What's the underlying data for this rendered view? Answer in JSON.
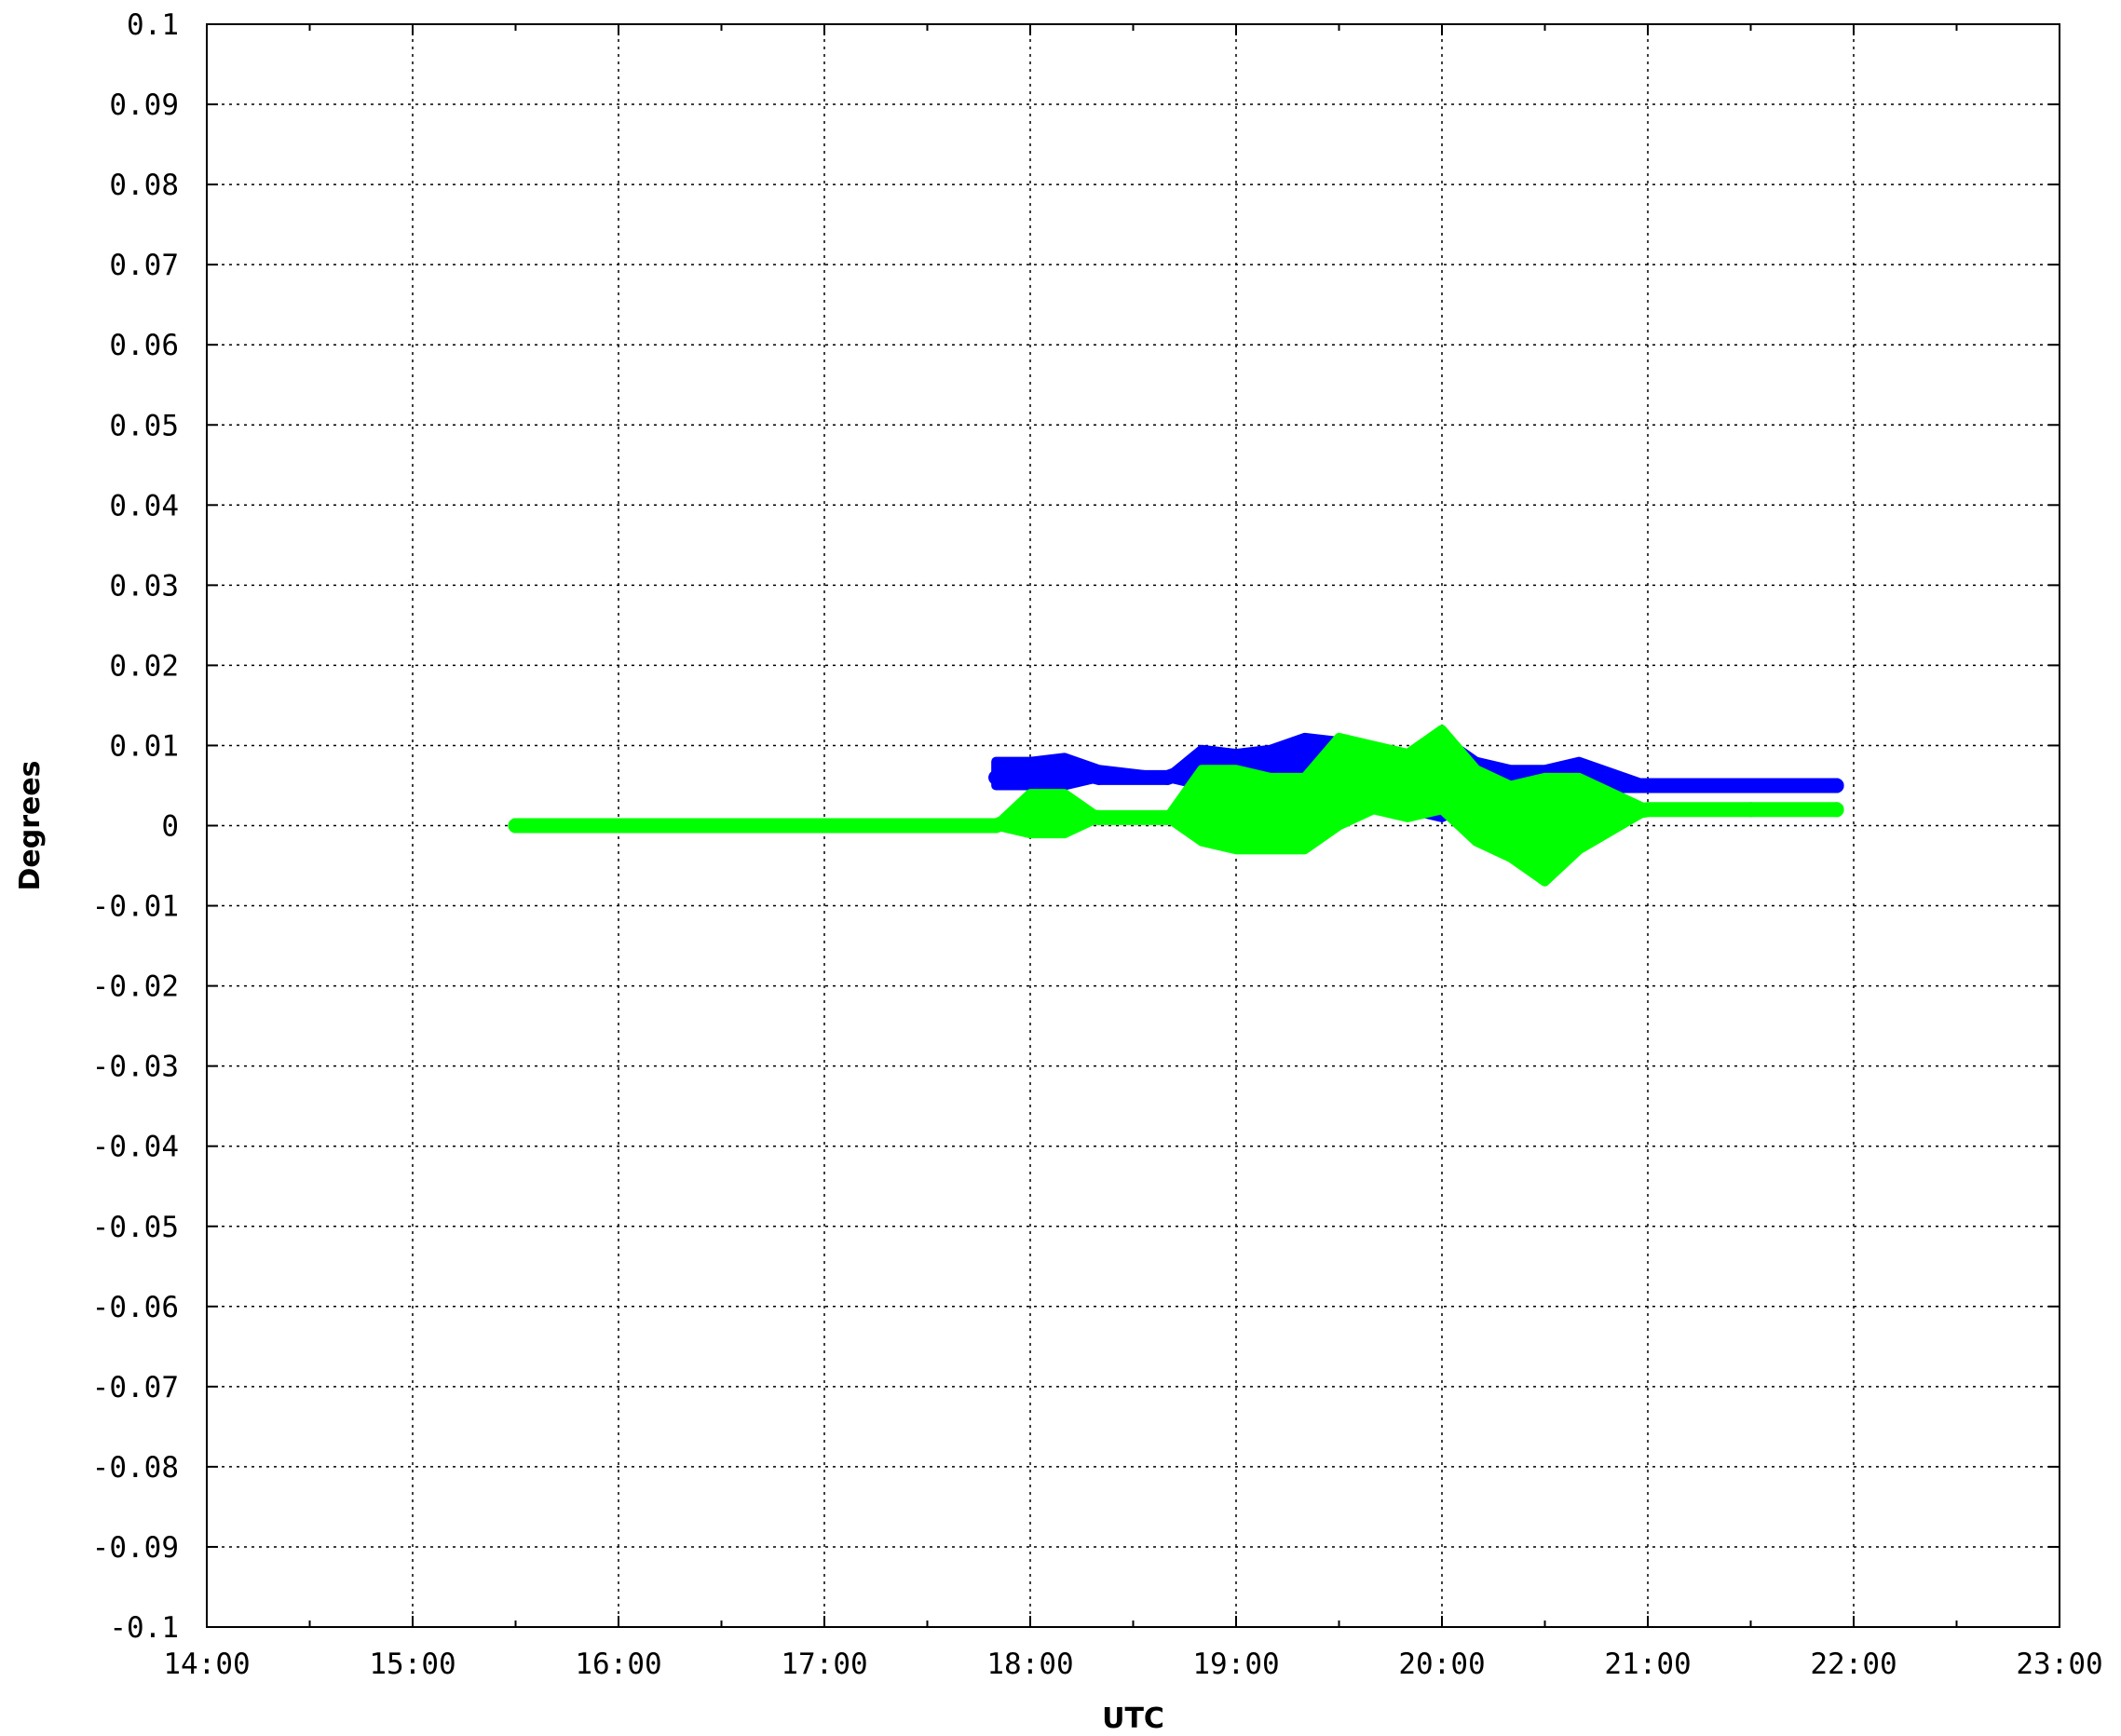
{
  "chart_data": {
    "type": "line",
    "title": "",
    "xlabel": "UTC",
    "ylabel": "Degrees",
    "x_ticks": [
      "14:00",
      "15:00",
      "16:00",
      "17:00",
      "18:00",
      "19:00",
      "20:00",
      "21:00",
      "22:00",
      "23:00"
    ],
    "xlim": [
      "14:00",
      "23:00"
    ],
    "y_ticks": [
      "0.1",
      "0.09",
      "0.08",
      "0.07",
      "0.06",
      "0.05",
      "0.04",
      "0.03",
      "0.02",
      "0.01",
      "0",
      "-0.01",
      "-0.02",
      "-0.03",
      "-0.04",
      "-0.05",
      "-0.06",
      "-0.07",
      "-0.08",
      "-0.09",
      "-0.1"
    ],
    "ylim": [
      -0.1,
      0.1
    ],
    "grid": true,
    "series": [
      {
        "color": "#0000ff",
        "x": [
          "17:50",
          "18:00",
          "18:10",
          "18:20",
          "18:40",
          "18:50",
          "19:00",
          "19:10",
          "19:20",
          "19:30",
          "19:40",
          "19:50",
          "20:00",
          "20:10",
          "20:20",
          "20:30",
          "20:40",
          "21:00",
          "21:30",
          "21:55"
        ],
        "values": [
          0.006,
          0.0065,
          0.007,
          0.006,
          0.006,
          0.0075,
          0.007,
          0.0065,
          0.008,
          0.0075,
          0.006,
          0.0055,
          0.006,
          0.0055,
          0.006,
          0.0055,
          0.005,
          0.005,
          0.005,
          0.005
        ],
        "range_low": [
          0.005,
          0.005,
          0.005,
          0.006,
          0.006,
          0.005,
          0.004,
          0.004,
          0.004,
          0.003,
          0.003,
          0.002,
          0.001,
          0.003,
          0.004,
          0.004,
          0.004,
          0.005,
          0.005,
          0.005
        ],
        "range_high": [
          0.008,
          0.008,
          0.0085,
          0.007,
          0.006,
          0.0095,
          0.009,
          0.0095,
          0.011,
          0.0105,
          0.009,
          0.009,
          0.011,
          0.008,
          0.007,
          0.007,
          0.008,
          0.005,
          0.005,
          0.005
        ]
      },
      {
        "color": "#00ff00",
        "x": [
          "15:30",
          "16:00",
          "17:00",
          "17:50",
          "18:00",
          "18:10",
          "18:20",
          "18:40",
          "18:50",
          "19:00",
          "19:10",
          "19:20",
          "19:30",
          "19:40",
          "19:50",
          "20:00",
          "20:10",
          "20:20",
          "20:30",
          "20:40",
          "21:00",
          "21:30",
          "21:55"
        ],
        "values": [
          0,
          0,
          0,
          0,
          0.0015,
          0.0015,
          0.001,
          0.001,
          0.0015,
          0.002,
          0.002,
          0.002,
          0.005,
          0.0055,
          0.0055,
          0.0065,
          0.003,
          0.001,
          -0.0005,
          0.0005,
          0.002,
          0.002,
          0.002
        ],
        "range_low": [
          0,
          0,
          0,
          0,
          -0.001,
          -0.001,
          0.001,
          0.001,
          -0.002,
          -0.003,
          -0.003,
          -0.003,
          0.0,
          0.002,
          0.001,
          0.002,
          -0.002,
          -0.004,
          -0.007,
          -0.003,
          0.002,
          0.002,
          0.002
        ],
        "range_high": [
          0,
          0,
          0,
          0,
          0.004,
          0.004,
          0.001,
          0.001,
          0.007,
          0.007,
          0.006,
          0.006,
          0.011,
          0.01,
          0.009,
          0.012,
          0.007,
          0.005,
          0.006,
          0.006,
          0.002,
          0.002,
          0.002
        ]
      }
    ]
  }
}
